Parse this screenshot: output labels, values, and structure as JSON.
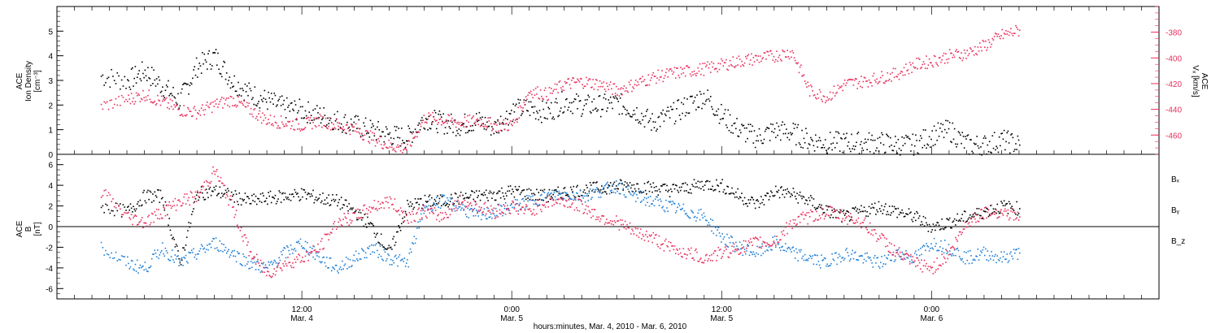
{
  "chart_data": [
    {
      "type": "scatter",
      "panel": "top",
      "ylabel_lines": [
        "ACE",
        "Ion Density",
        "[cm⁻³]"
      ],
      "ylim": [
        0,
        6
      ],
      "yticks": [
        0,
        1,
        2,
        3,
        4,
        5
      ],
      "y2label_lines": [
        "ACE",
        "Vₓ [km/s]"
      ],
      "y2lim": [
        -475,
        -360
      ],
      "y2ticks": [
        -460,
        -440,
        -420,
        -400,
        -380
      ],
      "x_hours": [
        0.5,
        2,
        3,
        4,
        5,
        6,
        7,
        8,
        9,
        10,
        11,
        12,
        13,
        14,
        15,
        16,
        17,
        18,
        19,
        20,
        21,
        22,
        23,
        24,
        25,
        26,
        27,
        28,
        29,
        30,
        31,
        32,
        33,
        34,
        35,
        36,
        37,
        38,
        39,
        40,
        41,
        42,
        43,
        44,
        45,
        46,
        47,
        48,
        49,
        50,
        51,
        52,
        53
      ],
      "series": [
        {
          "color": "#000000",
          "axis": "left",
          "values": [
            3.2,
            3.0,
            3.4,
            2.8,
            2.2,
            3.6,
            4.0,
            3.0,
            2.5,
            2.2,
            1.9,
            1.8,
            1.6,
            1.4,
            1.2,
            1.0,
            0.8,
            0.7,
            1.5,
            1.3,
            1.2,
            1.4,
            1.1,
            1.8,
            1.9,
            1.7,
            2.2,
            2.0,
            2.0,
            2.1,
            1.8,
            1.3,
            1.6,
            2.0,
            2.4,
            1.6,
            1.0,
            0.7,
            1.0,
            0.9,
            0.6,
            0.5,
            0.5,
            0.5,
            0.5,
            0.4,
            0.4,
            0.8,
            1.0,
            0.4,
            0.4,
            0.6,
            0.4
          ]
        },
        {
          "color": "#e8305c",
          "axis": "right",
          "values": [
            -437,
            -432,
            -428,
            -434,
            -440,
            -442,
            -436,
            -432,
            -440,
            -448,
            -450,
            -452,
            -448,
            -452,
            -455,
            -462,
            -468,
            -470,
            -446,
            -448,
            -450,
            -448,
            -452,
            -452,
            -425,
            -428,
            -420,
            -418,
            -420,
            -425,
            -420,
            -415,
            -412,
            -410,
            -408,
            -405,
            -402,
            -400,
            -398,
            -395,
            -425,
            -430,
            -420,
            -418,
            -415,
            -412,
            -405,
            -402,
            -398,
            -396,
            -390,
            -382,
            -378
          ]
        }
      ]
    },
    {
      "type": "scatter",
      "panel": "bottom",
      "ylabel_lines": [
        "ACE",
        "B",
        "[nT]"
      ],
      "ylim": [
        -7,
        7
      ],
      "yticks": [
        -6,
        -4,
        -2,
        0,
        2,
        4,
        6
      ],
      "x_hours": [
        0.5,
        2,
        3,
        4,
        5,
        6,
        7,
        8,
        9,
        10,
        11,
        12,
        13,
        14,
        15,
        16,
        17,
        18,
        19,
        20,
        21,
        22,
        23,
        24,
        25,
        26,
        27,
        28,
        29,
        30,
        31,
        32,
        33,
        34,
        35,
        36,
        37,
        38,
        39,
        40,
        41,
        42,
        43,
        44,
        45,
        46,
        47,
        48,
        49,
        50,
        51,
        52,
        53
      ],
      "series": [
        {
          "name": "Bₓ",
          "color": "#000000",
          "values": [
            2.0,
            1.5,
            3.0,
            3.0,
            -3.5,
            3.2,
            3.5,
            3.0,
            2.5,
            2.8,
            3.0,
            3.2,
            2.8,
            2.5,
            1.5,
            0.0,
            -2.5,
            2.0,
            2.5,
            2.5,
            2.8,
            3.0,
            3.2,
            3.5,
            3.2,
            3.0,
            3.4,
            3.6,
            3.8,
            4.0,
            4.0,
            3.8,
            3.6,
            3.8,
            4.2,
            4.0,
            3.0,
            2.2,
            3.5,
            3.2,
            2.5,
            1.5,
            1.0,
            1.5,
            2.0,
            1.5,
            1.0,
            0.0,
            0.5,
            1.0,
            1.5,
            2.0,
            1.8
          ]
        },
        {
          "name": "Bᵧ",
          "color": "#1f7fd6",
          "values": [
            -2.0,
            -3.5,
            -4.0,
            -2.0,
            -3.5,
            -2.5,
            -1.5,
            -2.5,
            -3.5,
            -4.0,
            -2.5,
            -1.5,
            -3.0,
            -4.0,
            -3.0,
            -2.0,
            -3.0,
            -3.5,
            2.0,
            2.5,
            2.0,
            1.0,
            1.5,
            2.0,
            2.5,
            3.0,
            3.2,
            3.0,
            3.5,
            4.0,
            3.0,
            2.5,
            2.0,
            1.5,
            1.0,
            -1.0,
            -2.0,
            -2.5,
            -1.5,
            -2.5,
            -3.0,
            -3.5,
            -2.5,
            -3.0,
            -3.5,
            -2.5,
            -3.0,
            -1.5,
            -2.0,
            -3.0,
            -2.5,
            -3.0,
            -2.5
          ]
        },
        {
          "name": "B_z",
          "color": "#e8305c",
          "values": [
            3.5,
            1.0,
            0.5,
            1.5,
            2.5,
            3.0,
            5.5,
            2.0,
            -2.5,
            -4.5,
            -3.5,
            -3.0,
            -2.0,
            0.5,
            1.0,
            2.0,
            2.5,
            1.0,
            1.5,
            1.0,
            2.5,
            2.0,
            1.5,
            2.0,
            1.5,
            2.5,
            2.5,
            2.0,
            1.0,
            0.5,
            -0.5,
            -1.0,
            -2.0,
            -2.5,
            -3.0,
            -2.5,
            -2.0,
            -1.5,
            -1.5,
            0.5,
            1.0,
            1.5,
            1.0,
            0.5,
            -1.0,
            -2.5,
            -3.5,
            -4.0,
            -2.5,
            0.5,
            1.5,
            1.5,
            1.0
          ]
        }
      ]
    }
  ],
  "x_axis": {
    "range_hours": [
      -2,
      61
    ],
    "major_ticks": [
      {
        "hour": 12,
        "time": "12:00",
        "date": "Mar. 4"
      },
      {
        "hour": 24,
        "time": "0:00",
        "date": "Mar. 5"
      },
      {
        "hour": 36,
        "time": "12:00",
        "date": "Mar. 5"
      },
      {
        "hour": 48,
        "time": "0:00",
        "date": "Mar. 6"
      }
    ],
    "title": "hours:minutes, Mar.  4, 2010 - Mar.  6, 2010"
  },
  "colors": {
    "black": "#000000",
    "pink": "#e8305c",
    "blue": "#1f7fd6",
    "frame": "#000000"
  }
}
